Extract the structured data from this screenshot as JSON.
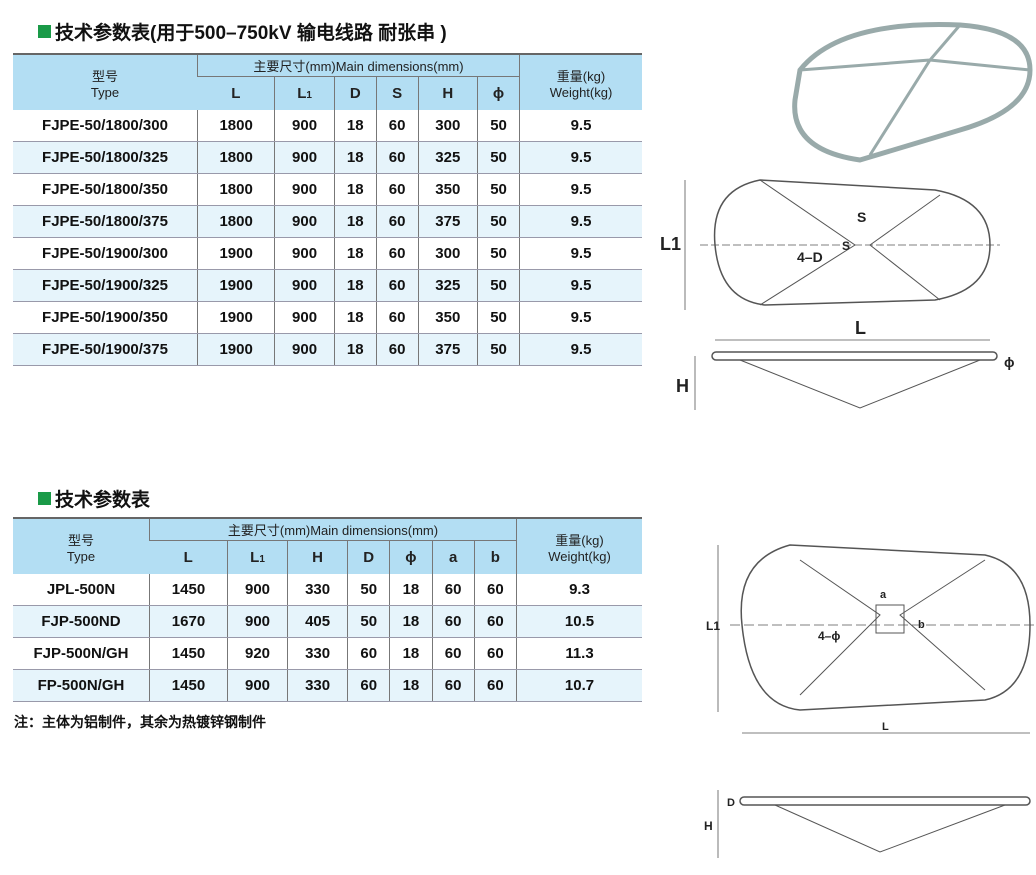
{
  "table1": {
    "title": "技术参数表(用于500–750kV 输电线路 耐张串 )",
    "type_cn": "型号",
    "type_en": "Type",
    "dims": "主要尺寸(mm)Main dimensions(mm)",
    "weight_cn": "重量(kg)",
    "weight_en": "Weight(kg)",
    "cols": [
      "L",
      "L1",
      "D",
      "S",
      "H",
      "ϕ"
    ],
    "rows": [
      [
        "FJPE-50/1800/300",
        "1800",
        "900",
        "18",
        "60",
        "300",
        "50",
        "9.5"
      ],
      [
        "FJPE-50/1800/325",
        "1800",
        "900",
        "18",
        "60",
        "325",
        "50",
        "9.5"
      ],
      [
        "FJPE-50/1800/350",
        "1800",
        "900",
        "18",
        "60",
        "350",
        "50",
        "9.5"
      ],
      [
        "FJPE-50/1800/375",
        "1800",
        "900",
        "18",
        "60",
        "375",
        "50",
        "9.5"
      ],
      [
        "FJPE-50/1900/300",
        "1900",
        "900",
        "18",
        "60",
        "300",
        "50",
        "9.5"
      ],
      [
        "FJPE-50/1900/325",
        "1900",
        "900",
        "18",
        "60",
        "325",
        "50",
        "9.5"
      ],
      [
        "FJPE-50/1900/350",
        "1900",
        "900",
        "18",
        "60",
        "350",
        "50",
        "9.5"
      ],
      [
        "FJPE-50/1900/375",
        "1900",
        "900",
        "18",
        "60",
        "375",
        "50",
        "9.5"
      ]
    ]
  },
  "table2": {
    "title": "技术参数表",
    "type_cn": "型号",
    "type_en": "Type",
    "dims": "主要尺寸(mm)Main dimensions(mm)",
    "weight_cn": "重量(kg)",
    "weight_en": "Weight(kg)",
    "cols": [
      "L",
      "L1",
      "H",
      "D",
      "ϕ",
      "a",
      "b"
    ],
    "rows": [
      [
        "JPL-500N",
        "1450",
        "900",
        "330",
        "50",
        "18",
        "60",
        "60",
        "9.3"
      ],
      [
        "FJP-500ND",
        "1670",
        "900",
        "405",
        "50",
        "18",
        "60",
        "60",
        "10.5"
      ],
      [
        "FJP-500N/GH",
        "1450",
        "920",
        "330",
        "60",
        "18",
        "60",
        "60",
        "11.3"
      ],
      [
        "FP-500N/GH",
        "1450",
        "900",
        "330",
        "60",
        "18",
        "60",
        "60",
        "10.7"
      ]
    ]
  },
  "note": "注：主体为铝制件，其余为热镀锌钢制件",
  "drawing1": {
    "L1": "L1",
    "S1": "S",
    "S2": "S",
    "D": "4–D",
    "L": "L",
    "H": "H",
    "phi": "ϕ"
  },
  "drawing2": {
    "a": "a",
    "b": "b",
    "phi": "4–ϕ",
    "L1": "L1",
    "L": "L",
    "D": "D",
    "H": "H"
  },
  "colors": {
    "header": "#b3def3",
    "stripe": "#e6f4fb",
    "bullet": "#1a9a48"
  }
}
